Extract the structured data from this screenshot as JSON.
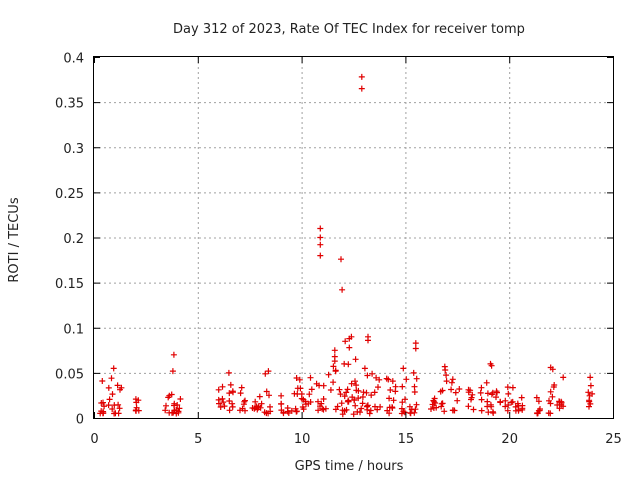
{
  "chart_data": {
    "type": "scatter",
    "title": "Day 312 of 2023, Rate Of TEC Index for receiver tomp",
    "xlabel": "GPS time / hours",
    "ylabel": "ROTI / TECUs",
    "xlim": [
      0,
      25
    ],
    "ylim": [
      0,
      0.4
    ],
    "grid": true,
    "marker": "plus",
    "marker_color": "#e00000",
    "x_ticks": [
      0,
      5,
      10,
      15,
      20,
      25
    ],
    "x_tick_labels": [
      "0",
      "5",
      "10",
      "15",
      "20",
      "25"
    ],
    "y_ticks": [
      0,
      0.05,
      0.1,
      0.15,
      0.2,
      0.25,
      0.3,
      0.35,
      0.4
    ],
    "y_tick_labels": [
      "0",
      "0.05",
      "0.1",
      "0.15",
      "0.2",
      "0.25",
      "0.3",
      "0.35",
      "0.4"
    ],
    "clusters": [
      {
        "x": [
          0.3,
          0.5
        ],
        "y": [
          0.005,
          0.022
        ]
      },
      {
        "x": [
          0.7,
          1.4
        ],
        "y": [
          0.005,
          0.045
        ]
      },
      {
        "x": [
          2.0,
          2.2
        ],
        "y": [
          0.008,
          0.022
        ]
      },
      {
        "x": [
          3.4,
          4.2
        ],
        "y": [
          0.005,
          0.028
        ]
      },
      {
        "x": [
          6.0,
          6.3
        ],
        "y": [
          0.008,
          0.035
        ]
      },
      {
        "x": [
          6.4,
          6.7
        ],
        "y": [
          0.008,
          0.045
        ]
      },
      {
        "x": [
          7.0,
          7.3
        ],
        "y": [
          0.008,
          0.035
        ]
      },
      {
        "x": [
          7.6,
          8.1
        ],
        "y": [
          0.008,
          0.028
        ]
      },
      {
        "x": [
          8.2,
          8.5
        ],
        "y": [
          0.005,
          0.05
        ]
      },
      {
        "x": [
          9.0,
          9.4
        ],
        "y": [
          0.005,
          0.03
        ]
      },
      {
        "x": [
          9.5,
          10.5
        ],
        "y": [
          0.005,
          0.045
        ]
      },
      {
        "x": [
          10.7,
          11.2
        ],
        "y": [
          0.004,
          0.04
        ]
      },
      {
        "x": [
          11.3,
          12.8
        ],
        "y": [
          0.004,
          0.06
        ]
      },
      {
        "x": [
          12.8,
          13.8
        ],
        "y": [
          0.005,
          0.05
        ]
      },
      {
        "x": [
          14.0,
          14.6
        ],
        "y": [
          0.005,
          0.045
        ]
      },
      {
        "x": [
          14.8,
          15.6
        ],
        "y": [
          0.005,
          0.05
        ]
      },
      {
        "x": [
          16.2,
          16.5
        ],
        "y": [
          0.008,
          0.03
        ]
      },
      {
        "x": [
          16.6,
          17.0
        ],
        "y": [
          0.005,
          0.055
        ]
      },
      {
        "x": [
          17.2,
          17.6
        ],
        "y": [
          0.008,
          0.045
        ]
      },
      {
        "x": [
          18.0,
          18.3
        ],
        "y": [
          0.008,
          0.035
        ]
      },
      {
        "x": [
          18.6,
          19.0
        ],
        "y": [
          0.005,
          0.04
        ]
      },
      {
        "x": [
          19.1,
          19.6
        ],
        "y": [
          0.005,
          0.03
        ]
      },
      {
        "x": [
          19.8,
          20.2
        ],
        "y": [
          0.008,
          0.035
        ]
      },
      {
        "x": [
          20.3,
          20.8
        ],
        "y": [
          0.008,
          0.028
        ]
      },
      {
        "x": [
          21.3,
          21.5
        ],
        "y": [
          0.005,
          0.025
        ]
      },
      {
        "x": [
          21.9,
          22.2
        ],
        "y": [
          0.005,
          0.05
        ]
      },
      {
        "x": [
          22.3,
          22.6
        ],
        "y": [
          0.008,
          0.02
        ]
      },
      {
        "x": [
          23.8,
          24.0
        ],
        "y": [
          0.008,
          0.04
        ]
      }
    ],
    "outliers": [
      {
        "x": 0.4,
        "y": 0.041
      },
      {
        "x": 0.95,
        "y": 0.055
      },
      {
        "x": 3.85,
        "y": 0.07
      },
      {
        "x": 3.8,
        "y": 0.052
      },
      {
        "x": 10.9,
        "y": 0.21
      },
      {
        "x": 10.9,
        "y": 0.2
      },
      {
        "x": 10.9,
        "y": 0.192
      },
      {
        "x": 10.9,
        "y": 0.18
      },
      {
        "x": 11.9,
        "y": 0.176
      },
      {
        "x": 11.95,
        "y": 0.142
      },
      {
        "x": 12.9,
        "y": 0.378
      },
      {
        "x": 12.9,
        "y": 0.365
      },
      {
        "x": 12.1,
        "y": 0.085
      },
      {
        "x": 12.3,
        "y": 0.088
      },
      {
        "x": 12.4,
        "y": 0.09
      },
      {
        "x": 12.3,
        "y": 0.078
      },
      {
        "x": 11.6,
        "y": 0.075
      },
      {
        "x": 11.6,
        "y": 0.068
      },
      {
        "x": 11.6,
        "y": 0.063
      },
      {
        "x": 13.2,
        "y": 0.09
      },
      {
        "x": 13.2,
        "y": 0.086
      },
      {
        "x": 15.5,
        "y": 0.083
      },
      {
        "x": 15.5,
        "y": 0.077
      },
      {
        "x": 15.4,
        "y": 0.05
      },
      {
        "x": 12.05,
        "y": 0.06
      },
      {
        "x": 12.6,
        "y": 0.065
      },
      {
        "x": 13.05,
        "y": 0.055
      },
      {
        "x": 16.9,
        "y": 0.057
      },
      {
        "x": 19.1,
        "y": 0.06
      },
      {
        "x": 19.15,
        "y": 0.058
      },
      {
        "x": 22.0,
        "y": 0.056
      },
      {
        "x": 22.1,
        "y": 0.054
      },
      {
        "x": 22.6,
        "y": 0.045
      },
      {
        "x": 23.9,
        "y": 0.045
      },
      {
        "x": 14.9,
        "y": 0.055
      },
      {
        "x": 8.4,
        "y": 0.052
      },
      {
        "x": 6.5,
        "y": 0.05
      },
      {
        "x": 11.3,
        "y": 0.048
      }
    ]
  }
}
